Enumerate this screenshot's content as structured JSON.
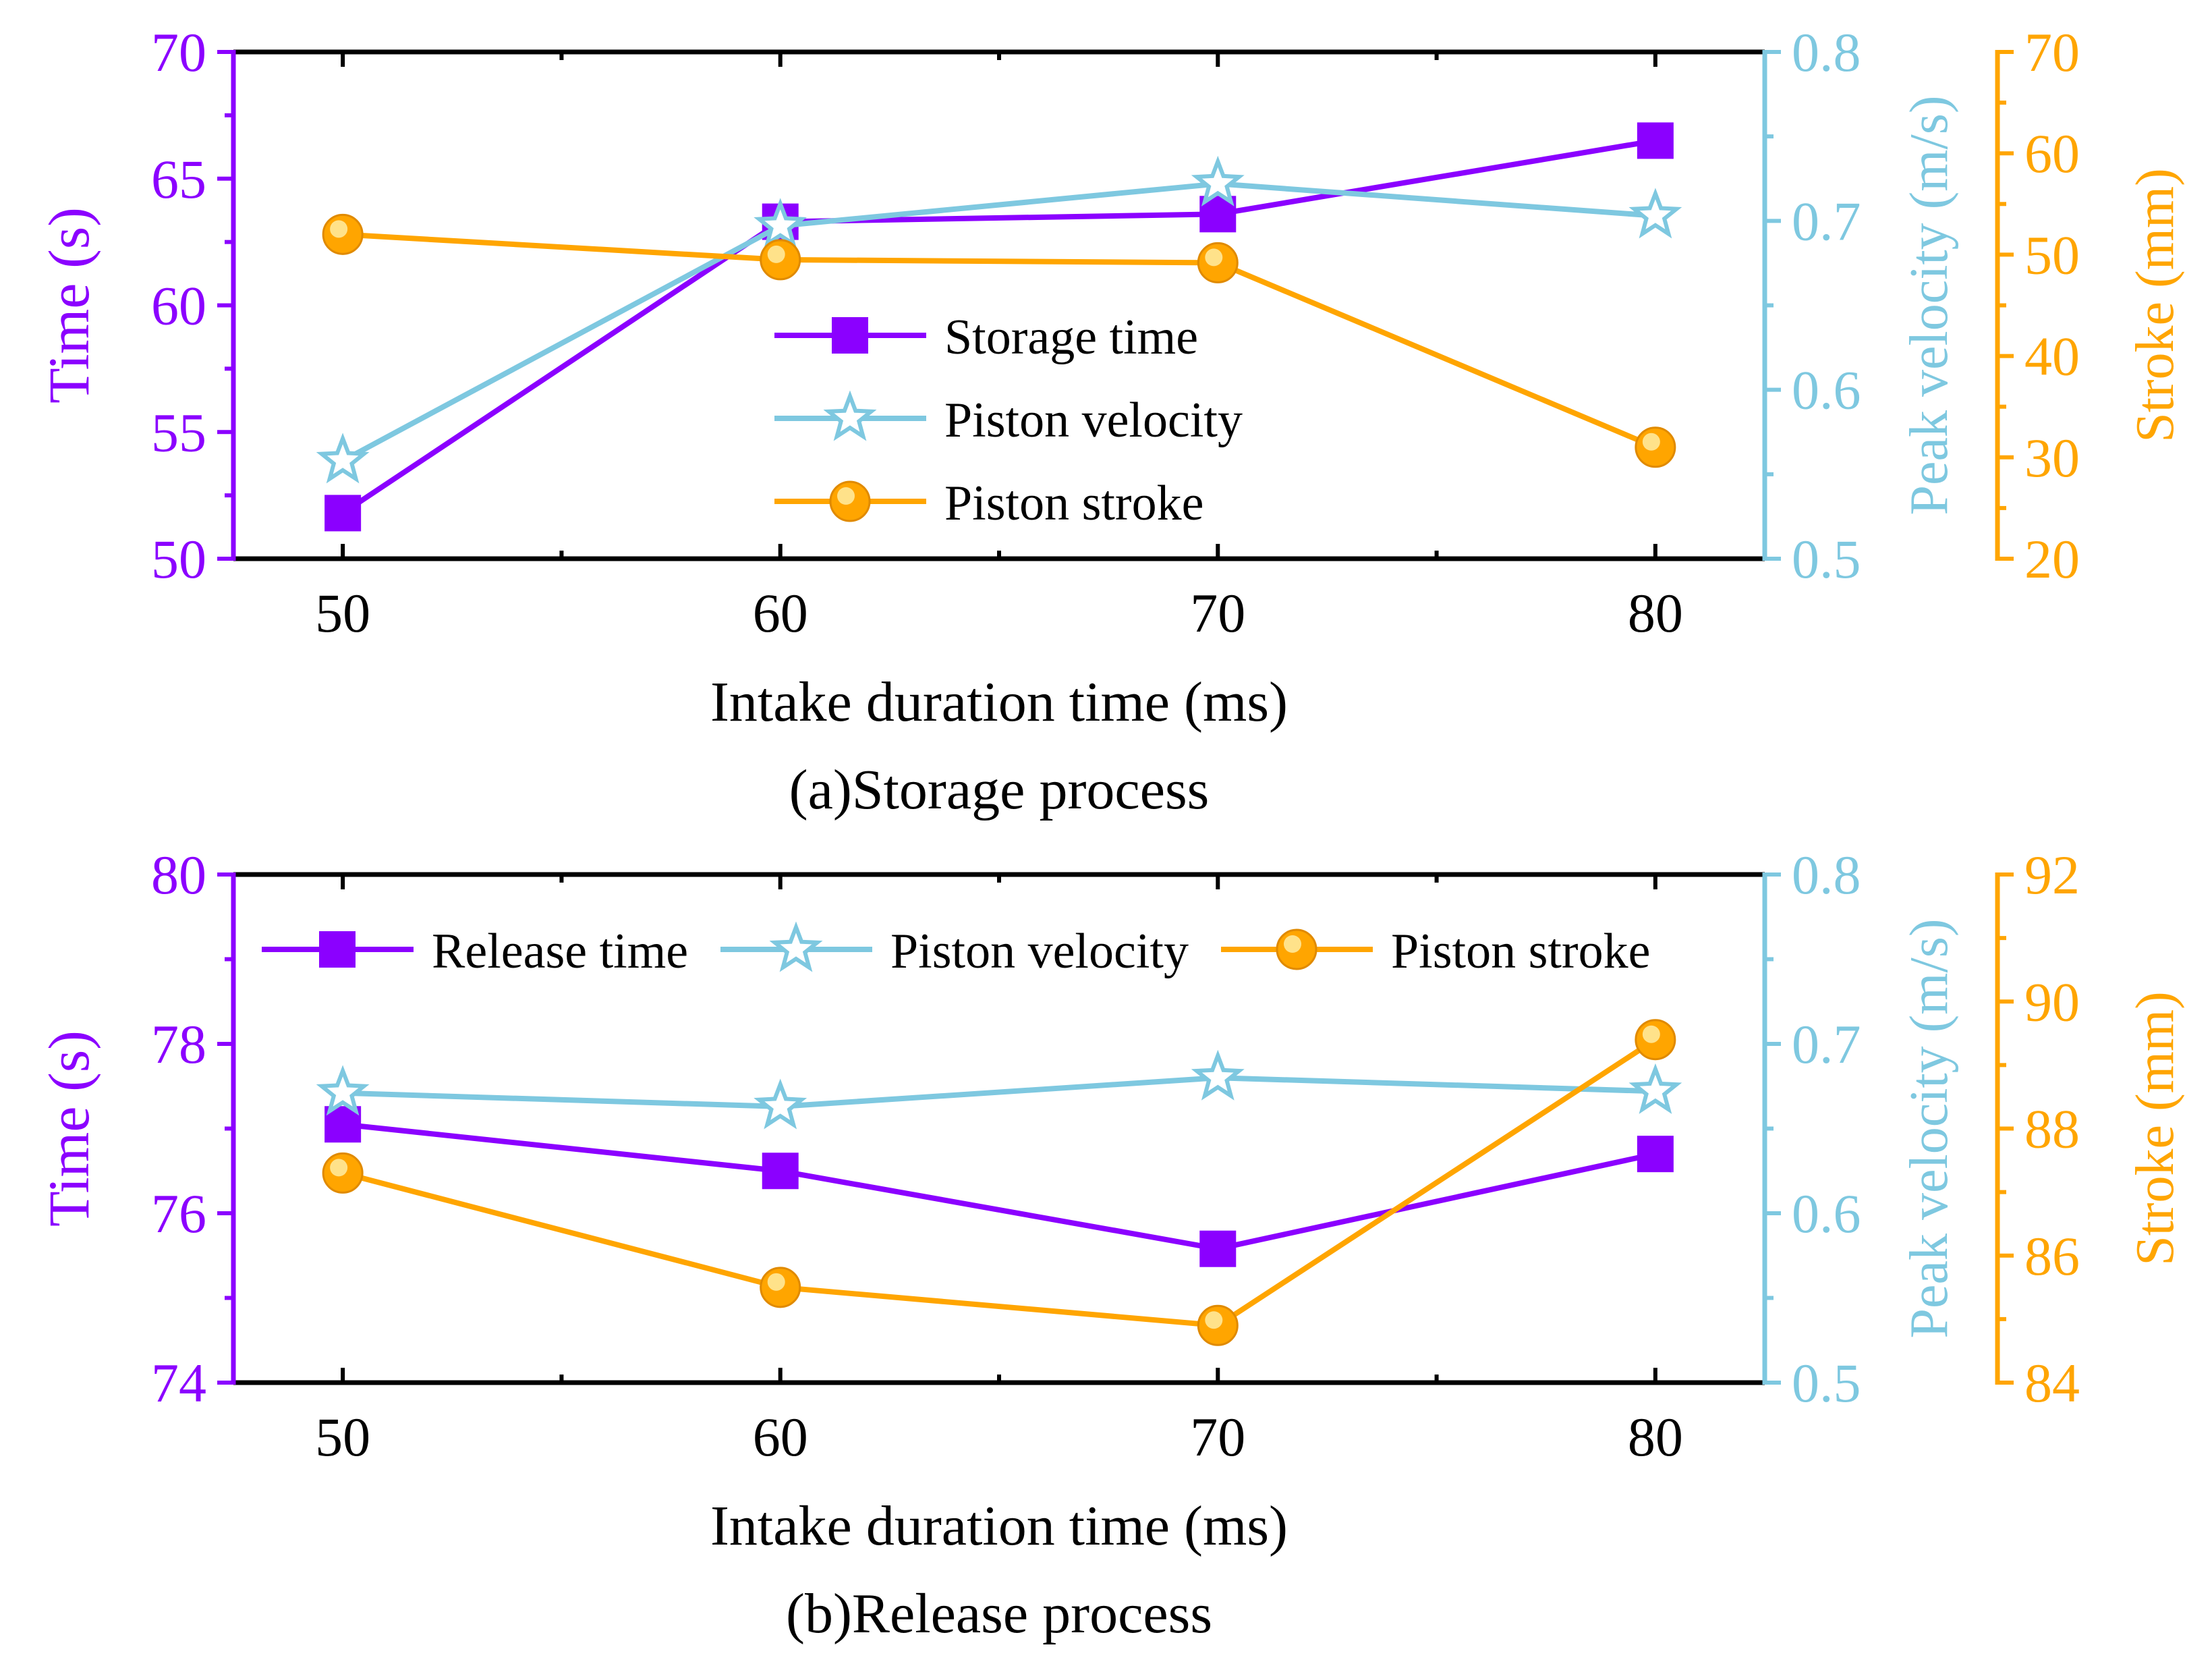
{
  "colors": {
    "time": "#8b00ff",
    "velocity": "#7ec8e0",
    "stroke": "#ffa500",
    "axis": "#000000"
  },
  "chart_data": [
    {
      "type": "line",
      "caption": "(a)Storage process",
      "xlabel": "Intake duration time (ms)",
      "x": [
        50,
        60,
        70,
        80
      ],
      "xticks": [
        "50",
        "60",
        "70",
        "80"
      ],
      "xlim": [
        47.5,
        82.5
      ],
      "axes": {
        "left": {
          "label": "Time (s)",
          "range": [
            50,
            70
          ],
          "ticks": [
            "50",
            "55",
            "60",
            "65",
            "70"
          ],
          "tick_values": [
            50,
            55,
            60,
            65,
            70
          ]
        },
        "right1": {
          "label": "Peak velocity (m/s)",
          "range": [
            0.5,
            0.8
          ],
          "ticks": [
            "0.5",
            "0.6",
            "0.7",
            "0.8"
          ],
          "tick_values": [
            0.5,
            0.6,
            0.7,
            0.8
          ]
        },
        "right2": {
          "label": "Stroke (mm)",
          "range": [
            20,
            70
          ],
          "ticks": [
            "20",
            "30",
            "40",
            "50",
            "60",
            "70"
          ],
          "tick_values": [
            20,
            30,
            40,
            50,
            60,
            70
          ]
        }
      },
      "series": [
        {
          "name": "Storage time",
          "axis": "left",
          "marker": "square",
          "values": [
            51.8,
            63.3,
            63.6,
            66.5
          ]
        },
        {
          "name": "Piston velocity",
          "axis": "right1",
          "marker": "star",
          "values": [
            0.558,
            0.697,
            0.722,
            0.703
          ]
        },
        {
          "name": "Piston stroke",
          "axis": "right2",
          "marker": "circle",
          "values": [
            52.0,
            49.5,
            49.2,
            31.0
          ]
        }
      ],
      "legend": "center"
    },
    {
      "type": "line",
      "caption": "(b)Release process",
      "xlabel": "Intake duration time (ms)",
      "x": [
        50,
        60,
        70,
        80
      ],
      "xticks": [
        "50",
        "60",
        "70",
        "80"
      ],
      "xlim": [
        47.5,
        82.5
      ],
      "axes": {
        "left": {
          "label": "Time (s)",
          "range": [
            74,
            80
          ],
          "ticks": [
            "74",
            "76",
            "78",
            "80"
          ],
          "tick_values": [
            74,
            76,
            78,
            80
          ]
        },
        "right1": {
          "label": "Peak velocity (m/s)",
          "range": [
            0.5,
            0.8
          ],
          "ticks": [
            "0.5",
            "0.6",
            "0.7",
            "0.8"
          ],
          "tick_values": [
            0.5,
            0.6,
            0.7,
            0.8
          ]
        },
        "right2": {
          "label": "Stroke (mm)",
          "range": [
            84,
            92
          ],
          "ticks": [
            "84",
            "86",
            "88",
            "90",
            "92"
          ],
          "tick_values": [
            84,
            86,
            88,
            90,
            92
          ]
        }
      },
      "series": [
        {
          "name": "Release time",
          "axis": "left",
          "marker": "square",
          "values": [
            77.05,
            76.5,
            75.58,
            76.7
          ]
        },
        {
          "name": "Piston velocity",
          "axis": "right1",
          "marker": "star",
          "values": [
            0.671,
            0.663,
            0.68,
            0.672
          ]
        },
        {
          "name": "Piston stroke",
          "axis": "right2",
          "marker": "circle",
          "values": [
            87.3,
            85.5,
            84.9,
            89.4
          ]
        }
      ],
      "legend": "top"
    }
  ]
}
